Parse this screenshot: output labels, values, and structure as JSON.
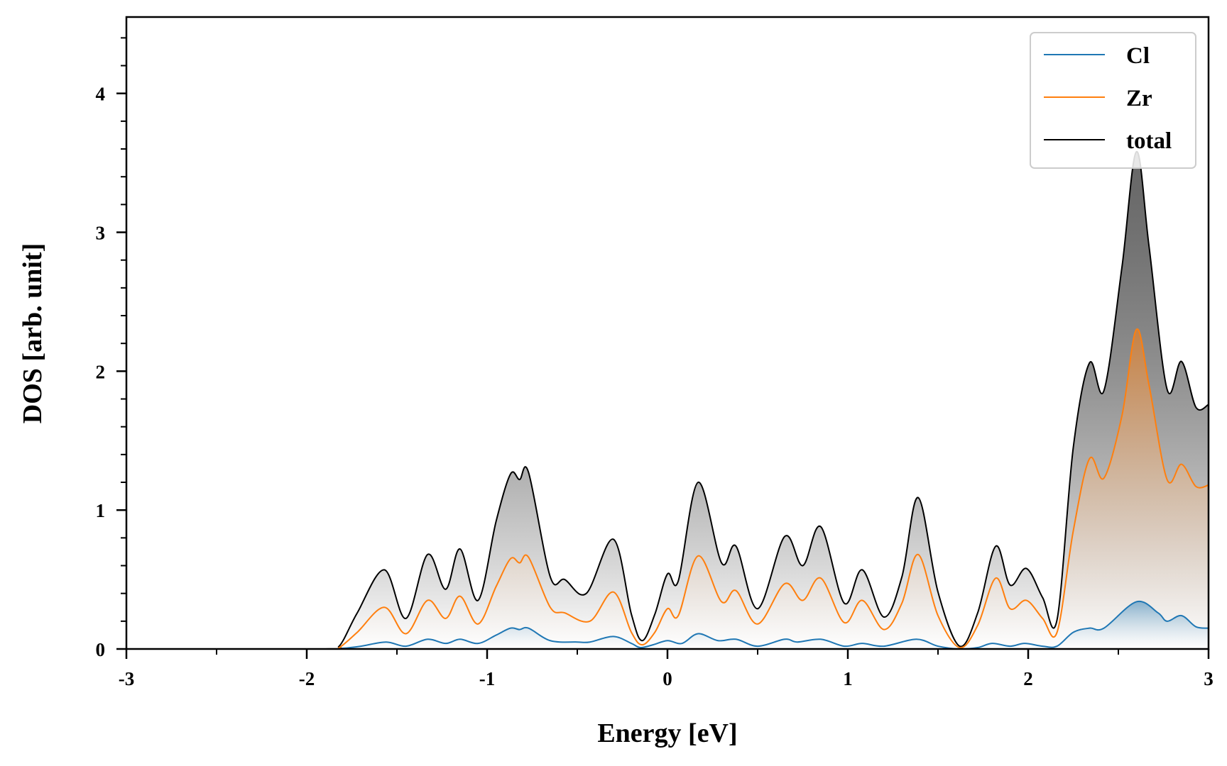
{
  "chart_data": {
    "type": "area",
    "xlabel": "Energy [eV]",
    "ylabel": "DOS [arb. unit]",
    "xlim": [
      -3,
      3
    ],
    "ylim": [
      0,
      4.55
    ],
    "xticks": [
      -3,
      -2,
      -1,
      0,
      1,
      2,
      3
    ],
    "yticks": [
      0,
      1,
      2,
      3,
      4
    ],
    "xtick_labels": [
      "-3",
      "-2",
      "-1",
      "0",
      "1",
      "2",
      "3"
    ],
    "ytick_labels": [
      "0",
      "1",
      "2",
      "3",
      "4"
    ],
    "grid": false,
    "legend_position": "top-right",
    "series": [
      {
        "name": "Cl",
        "color": "#1f77b4",
        "points": [
          [
            -3,
            0
          ],
          [
            -1.9,
            0
          ],
          [
            -1.8,
            0.005
          ],
          [
            -1.7,
            0.02
          ],
          [
            -1.56,
            0.05
          ],
          [
            -1.45,
            0.02
          ],
          [
            -1.33,
            0.07
          ],
          [
            -1.23,
            0.04
          ],
          [
            -1.15,
            0.07
          ],
          [
            -1.05,
            0.04
          ],
          [
            -0.95,
            0.1
          ],
          [
            -0.87,
            0.15
          ],
          [
            -0.82,
            0.14
          ],
          [
            -0.77,
            0.15
          ],
          [
            -0.65,
            0.06
          ],
          [
            -0.5,
            0.05
          ],
          [
            -0.43,
            0.05
          ],
          [
            -0.3,
            0.09
          ],
          [
            -0.2,
            0.04
          ],
          [
            -0.15,
            0.01
          ],
          [
            -0.08,
            0.03
          ],
          [
            0,
            0.06
          ],
          [
            0.08,
            0.04
          ],
          [
            0.17,
            0.11
          ],
          [
            0.28,
            0.06
          ],
          [
            0.38,
            0.07
          ],
          [
            0.5,
            0.02
          ],
          [
            0.65,
            0.07
          ],
          [
            0.72,
            0.05
          ],
          [
            0.85,
            0.07
          ],
          [
            0.98,
            0.02
          ],
          [
            1.08,
            0.04
          ],
          [
            1.2,
            0.02
          ],
          [
            1.38,
            0.07
          ],
          [
            1.5,
            0.02
          ],
          [
            1.62,
            0
          ],
          [
            1.72,
            0.01
          ],
          [
            1.8,
            0.04
          ],
          [
            1.9,
            0.02
          ],
          [
            1.98,
            0.04
          ],
          [
            2.08,
            0.02
          ],
          [
            2.16,
            0.02
          ],
          [
            2.25,
            0.12
          ],
          [
            2.34,
            0.15
          ],
          [
            2.42,
            0.15
          ],
          [
            2.6,
            0.34
          ],
          [
            2.72,
            0.26
          ],
          [
            2.77,
            0.2
          ],
          [
            2.85,
            0.24
          ],
          [
            2.93,
            0.16
          ],
          [
            3,
            0.15
          ]
        ]
      },
      {
        "name": "Zr",
        "color": "#ff7f0e",
        "points": [
          [
            -3,
            0
          ],
          [
            -1.88,
            0
          ],
          [
            -1.82,
            0.01
          ],
          [
            -1.72,
            0.12
          ],
          [
            -1.57,
            0.3
          ],
          [
            -1.45,
            0.11
          ],
          [
            -1.33,
            0.35
          ],
          [
            -1.23,
            0.22
          ],
          [
            -1.15,
            0.38
          ],
          [
            -1.05,
            0.18
          ],
          [
            -0.95,
            0.45
          ],
          [
            -0.87,
            0.65
          ],
          [
            -0.82,
            0.62
          ],
          [
            -0.77,
            0.66
          ],
          [
            -0.65,
            0.3
          ],
          [
            -0.57,
            0.26
          ],
          [
            -0.43,
            0.2
          ],
          [
            -0.3,
            0.41
          ],
          [
            -0.2,
            0.12
          ],
          [
            -0.14,
            0.03
          ],
          [
            -0.07,
            0.12
          ],
          [
            0,
            0.29
          ],
          [
            0.06,
            0.24
          ],
          [
            0.17,
            0.67
          ],
          [
            0.3,
            0.34
          ],
          [
            0.38,
            0.42
          ],
          [
            0.5,
            0.18
          ],
          [
            0.65,
            0.47
          ],
          [
            0.75,
            0.35
          ],
          [
            0.85,
            0.51
          ],
          [
            0.98,
            0.19
          ],
          [
            1.08,
            0.35
          ],
          [
            1.2,
            0.14
          ],
          [
            1.3,
            0.33
          ],
          [
            1.39,
            0.68
          ],
          [
            1.5,
            0.24
          ],
          [
            1.62,
            0.01
          ],
          [
            1.72,
            0.17
          ],
          [
            1.82,
            0.51
          ],
          [
            1.9,
            0.29
          ],
          [
            1.99,
            0.35
          ],
          [
            2.08,
            0.22
          ],
          [
            2.16,
            0.12
          ],
          [
            2.25,
            0.85
          ],
          [
            2.34,
            1.37
          ],
          [
            2.42,
            1.23
          ],
          [
            2.52,
            1.68
          ],
          [
            2.6,
            2.3
          ],
          [
            2.67,
            1.9
          ],
          [
            2.77,
            1.22
          ],
          [
            2.85,
            1.33
          ],
          [
            2.93,
            1.17
          ],
          [
            3,
            1.18
          ]
        ]
      },
      {
        "name": "total",
        "color": "#000000",
        "points": [
          [
            -3,
            0
          ],
          [
            -1.9,
            0
          ],
          [
            -1.82,
            0.02
          ],
          [
            -1.72,
            0.26
          ],
          [
            -1.57,
            0.57
          ],
          [
            -1.45,
            0.22
          ],
          [
            -1.33,
            0.68
          ],
          [
            -1.23,
            0.43
          ],
          [
            -1.15,
            0.72
          ],
          [
            -1.05,
            0.35
          ],
          [
            -0.95,
            0.92
          ],
          [
            -0.87,
            1.26
          ],
          [
            -0.82,
            1.22
          ],
          [
            -0.77,
            1.27
          ],
          [
            -0.65,
            0.52
          ],
          [
            -0.57,
            0.5
          ],
          [
            -0.45,
            0.4
          ],
          [
            -0.3,
            0.79
          ],
          [
            -0.2,
            0.25
          ],
          [
            -0.14,
            0.06
          ],
          [
            -0.07,
            0.25
          ],
          [
            0,
            0.54
          ],
          [
            0.06,
            0.49
          ],
          [
            0.17,
            1.2
          ],
          [
            0.3,
            0.62
          ],
          [
            0.38,
            0.74
          ],
          [
            0.5,
            0.29
          ],
          [
            0.65,
            0.81
          ],
          [
            0.75,
            0.6
          ],
          [
            0.85,
            0.88
          ],
          [
            0.98,
            0.33
          ],
          [
            1.08,
            0.57
          ],
          [
            1.2,
            0.23
          ],
          [
            1.3,
            0.52
          ],
          [
            1.39,
            1.09
          ],
          [
            1.5,
            0.41
          ],
          [
            1.62,
            0.02
          ],
          [
            1.72,
            0.26
          ],
          [
            1.82,
            0.74
          ],
          [
            1.9,
            0.46
          ],
          [
            1.99,
            0.58
          ],
          [
            2.08,
            0.37
          ],
          [
            2.16,
            0.21
          ],
          [
            2.25,
            1.45
          ],
          [
            2.34,
            2.06
          ],
          [
            2.42,
            1.86
          ],
          [
            2.52,
            2.75
          ],
          [
            2.6,
            3.58
          ],
          [
            2.67,
            2.9
          ],
          [
            2.77,
            1.87
          ],
          [
            2.85,
            2.07
          ],
          [
            2.93,
            1.74
          ],
          [
            3,
            1.76
          ]
        ]
      }
    ]
  }
}
